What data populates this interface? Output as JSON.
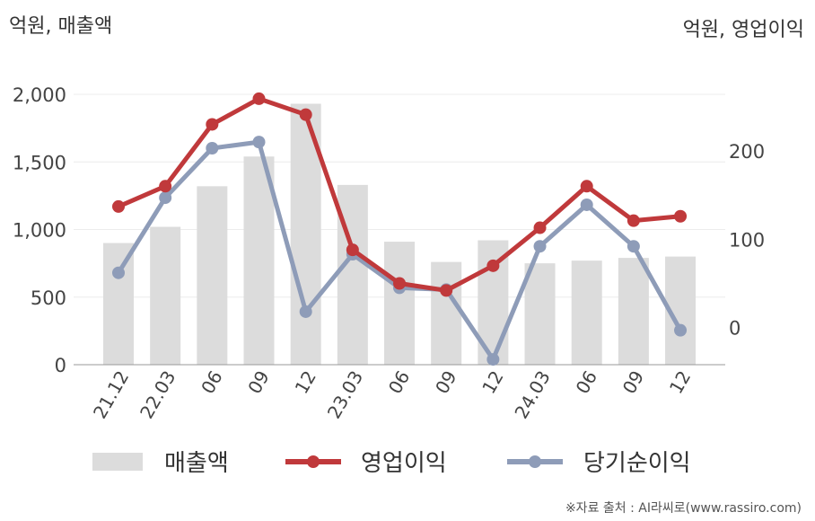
{
  "chart_data": {
    "type": "bar",
    "left_unit_label": "억원, 매출액",
    "right_unit_label": "억원, 영업이익",
    "categories": [
      "21.12",
      "22.03",
      "06",
      "09",
      "12",
      "23.03",
      "06",
      "09",
      "12",
      "24.03",
      "06",
      "09",
      "12"
    ],
    "series": [
      {
        "name": "매출액",
        "kind": "bar",
        "axis": "left",
        "color": "#dcdcdc",
        "values": [
          900,
          1020,
          1320,
          1540,
          1930,
          1330,
          910,
          760,
          920,
          750,
          770,
          790,
          800
        ]
      },
      {
        "name": "영업이익",
        "kind": "line",
        "axis": "right",
        "color": "#c0393b",
        "values": [
          137,
          160,
          230,
          259,
          241,
          88,
          50,
          42,
          70,
          113,
          160,
          121,
          126
        ]
      },
      {
        "name": "당기순이익",
        "kind": "line",
        "axis": "right",
        "color": "#8e9cb8",
        "values": [
          62,
          147,
          203,
          210,
          18,
          83,
          45,
          43,
          -36,
          92,
          139,
          92,
          -3
        ]
      }
    ],
    "left_axis": {
      "ticks": [
        "0",
        "500",
        "1,000",
        "1,500",
        "2,000"
      ],
      "tick_values": [
        0,
        500,
        1000,
        1500,
        2000
      ],
      "range": [
        0,
        2000
      ]
    },
    "right_axis": {
      "ticks": [
        "0",
        "100",
        "200"
      ],
      "tick_values": [
        0,
        100,
        200
      ],
      "range": [
        -42,
        264
      ]
    },
    "grid": true,
    "legend_position": "bottom"
  },
  "source_note": "※자료 출처 : AI라씨로(www.rassiro.com)"
}
